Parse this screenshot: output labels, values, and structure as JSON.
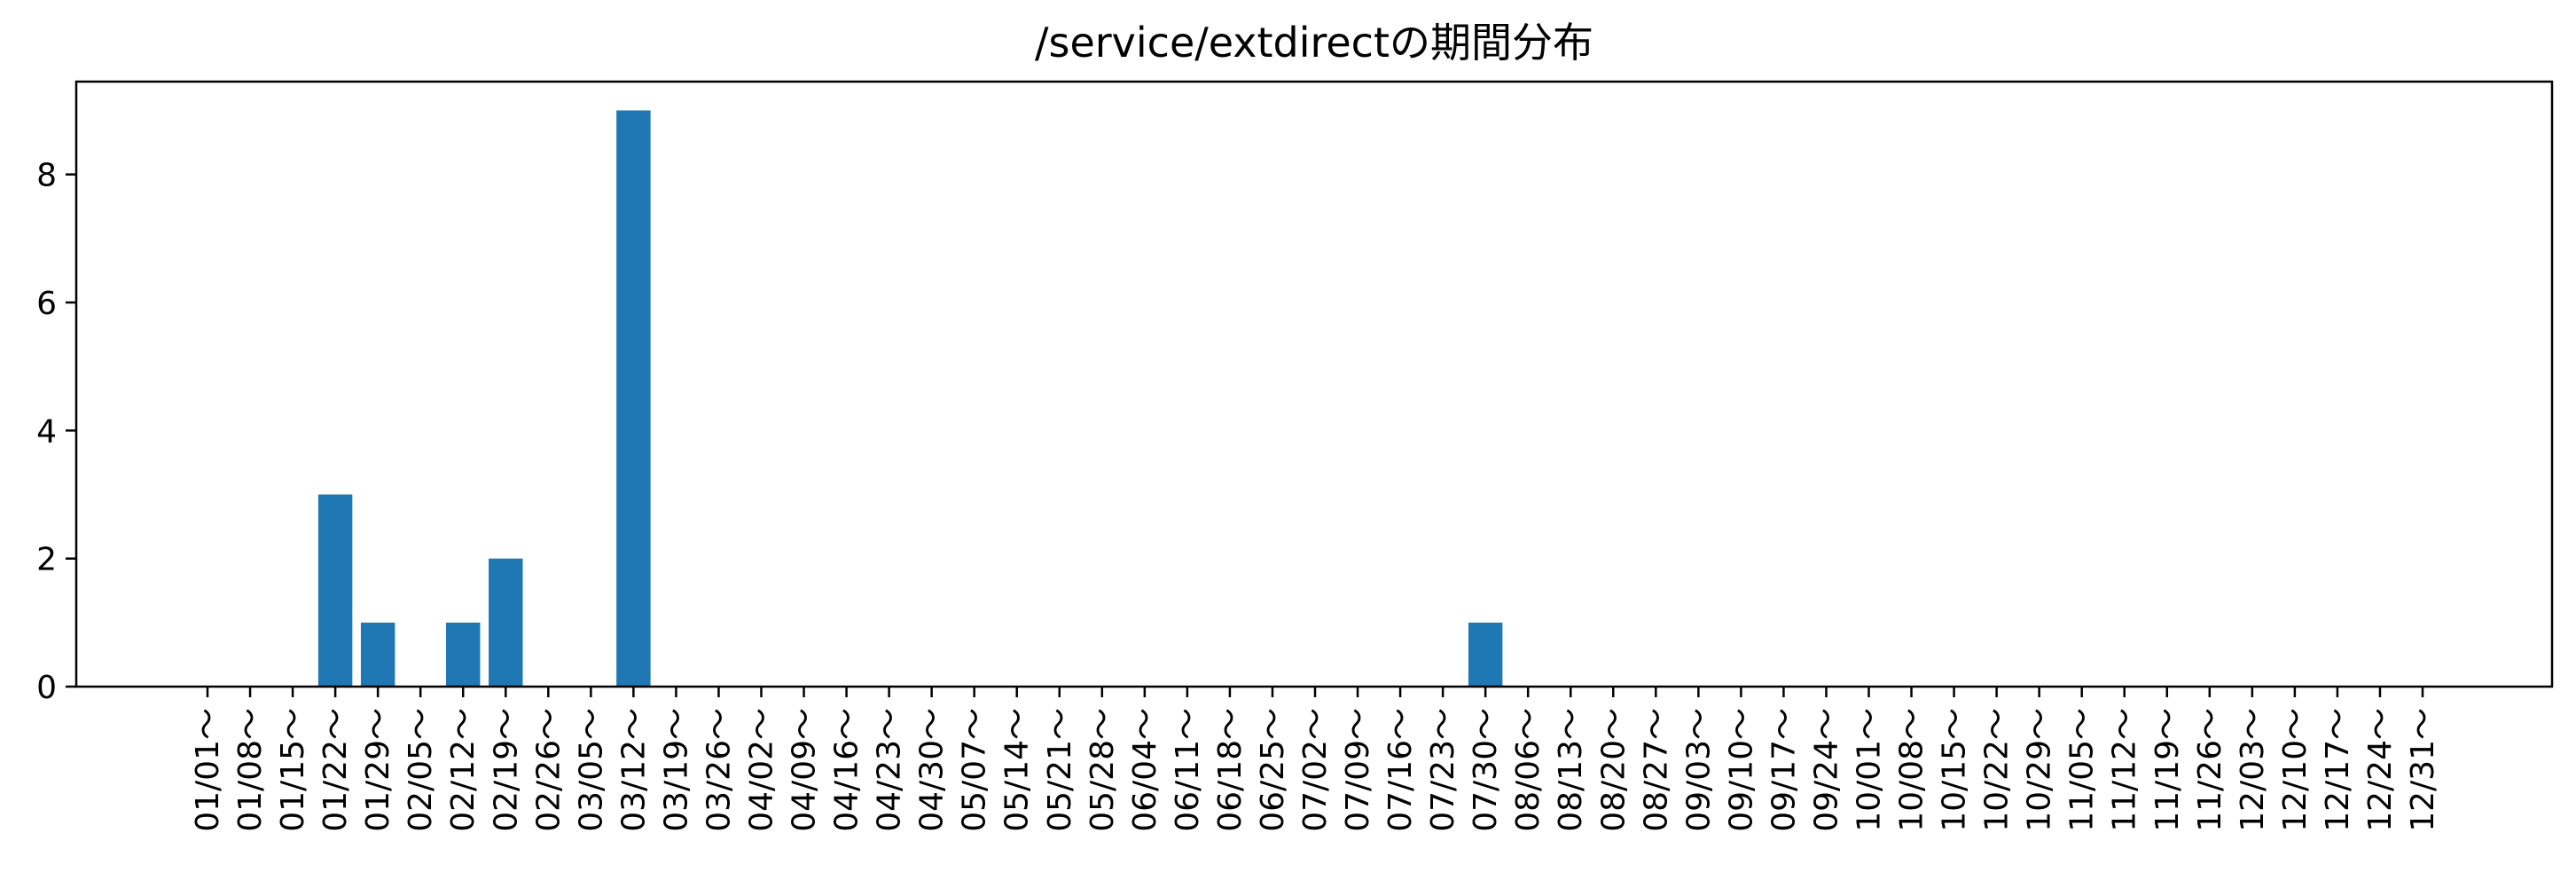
{
  "chart_data": {
    "type": "bar",
    "title": "/service/extdirectの期間分布",
    "xlabel": "",
    "ylabel": "",
    "categories": [
      "01/01～",
      "01/08～",
      "01/15～",
      "01/22～",
      "01/29～",
      "02/05～",
      "02/12～",
      "02/19～",
      "02/26～",
      "03/05～",
      "03/12～",
      "03/19～",
      "03/26～",
      "04/02～",
      "04/09～",
      "04/16～",
      "04/23～",
      "04/30～",
      "05/07～",
      "05/14～",
      "05/21～",
      "05/28～",
      "06/04～",
      "06/11～",
      "06/18～",
      "06/25～",
      "07/02～",
      "07/09～",
      "07/16～",
      "07/23～",
      "07/30～",
      "08/06～",
      "08/13～",
      "08/20～",
      "08/27～",
      "09/03～",
      "09/10～",
      "09/17～",
      "09/24～",
      "10/01～",
      "10/08～",
      "10/15～",
      "10/22～",
      "10/29～",
      "11/05～",
      "11/12～",
      "11/19～",
      "11/26～",
      "12/03～",
      "12/10～",
      "12/17～",
      "12/24～",
      "12/31～"
    ],
    "values": [
      0,
      0,
      0,
      3,
      1,
      0,
      1,
      2,
      0,
      0,
      9,
      0,
      0,
      0,
      0,
      0,
      0,
      0,
      0,
      0,
      0,
      0,
      0,
      0,
      0,
      0,
      0,
      0,
      0,
      0,
      1,
      0,
      0,
      0,
      0,
      0,
      0,
      0,
      0,
      0,
      0,
      0,
      0,
      0,
      0,
      0,
      0,
      0,
      0,
      0,
      0,
      0,
      0
    ],
    "yticks": [
      0,
      2,
      4,
      6,
      8
    ],
    "ylim": [
      0,
      9.45
    ],
    "bar_color": "#1f77b4",
    "grid": false,
    "legend": "none"
  }
}
